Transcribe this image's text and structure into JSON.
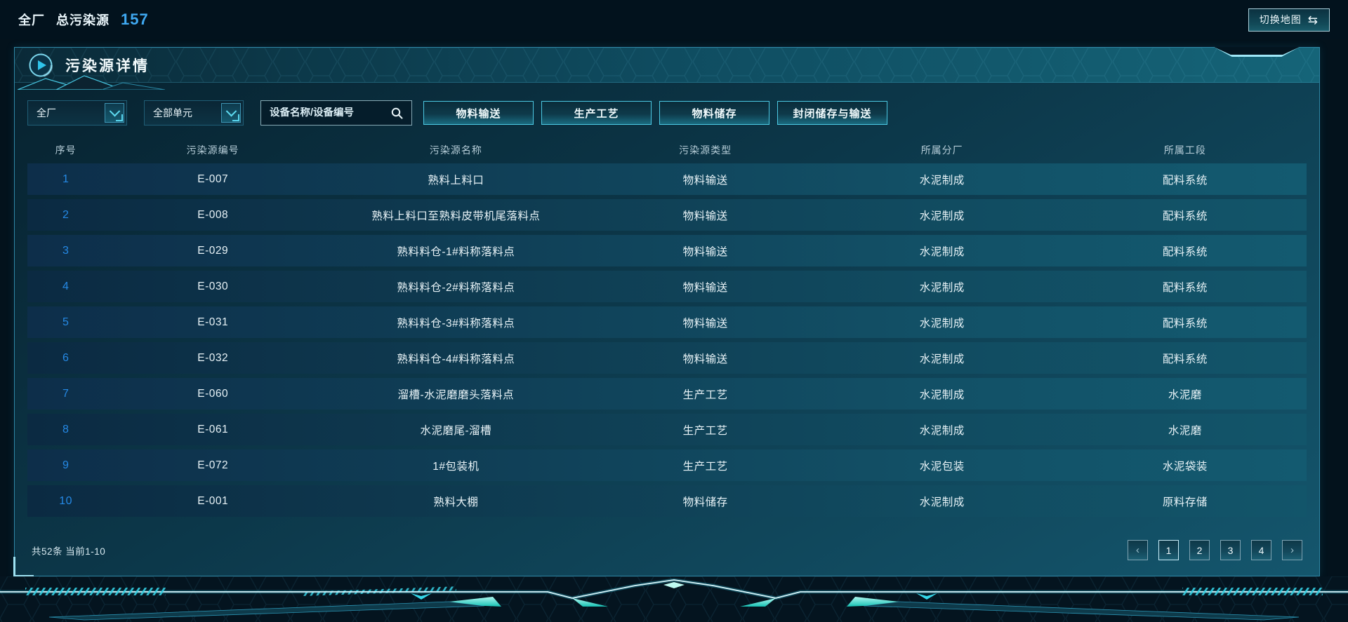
{
  "top_bar": {
    "scope_label": "全厂",
    "total_label": "总污染源",
    "total_value": "157",
    "switch_map_label": "切换地图",
    "switch_map_icon_glyph": "⇆"
  },
  "panel": {
    "title": "污染源详情",
    "filters": {
      "factory_select_value": "全厂",
      "unit_select_value": "全部单元",
      "search_placeholder": "设备名称/设备编号",
      "type_buttons": [
        "物料输送",
        "生产工艺",
        "物料储存",
        "封闭储存与输送"
      ]
    },
    "table": {
      "columns": [
        "序号",
        "污染源编号",
        "污染源名称",
        "污染源类型",
        "所属分厂",
        "所属工段"
      ],
      "rows": [
        [
          "1",
          "E-007",
          "熟料上料口",
          "物料输送",
          "水泥制成",
          "配料系统"
        ],
        [
          "2",
          "E-008",
          "熟料上料口至熟料皮带机尾落料点",
          "物料输送",
          "水泥制成",
          "配料系统"
        ],
        [
          "3",
          "E-029",
          "熟料料仓-1#料称落料点",
          "物料输送",
          "水泥制成",
          "配料系统"
        ],
        [
          "4",
          "E-030",
          "熟料料仓-2#料称落料点",
          "物料输送",
          "水泥制成",
          "配料系统"
        ],
        [
          "5",
          "E-031",
          "熟料料仓-3#料称落料点",
          "物料输送",
          "水泥制成",
          "配料系统"
        ],
        [
          "6",
          "E-032",
          "熟料料仓-4#料称落料点",
          "物料输送",
          "水泥制成",
          "配料系统"
        ],
        [
          "7",
          "E-060",
          "溜槽-水泥磨磨头落料点",
          "生产工艺",
          "水泥制成",
          "水泥磨"
        ],
        [
          "8",
          "E-061",
          "水泥磨尾-溜槽",
          "生产工艺",
          "水泥制成",
          "水泥磨"
        ],
        [
          "9",
          "E-072",
          "1#包装机",
          "生产工艺",
          "水泥包装",
          "水泥袋装"
        ],
        [
          "10",
          "E-001",
          "熟料大棚",
          "物料储存",
          "水泥制成",
          "原料存储"
        ]
      ]
    },
    "footer": {
      "summary": "共52条 当前1-10",
      "pages": [
        "1",
        "2",
        "3",
        "4"
      ],
      "current_page": "1",
      "prev_icon_glyph": "‹",
      "next_icon_glyph": "›"
    }
  },
  "colors": {
    "accent_cyan": "#3fd6ea",
    "index_blue": "#2589e5",
    "count_blue": "#3fa9f2",
    "panel_border": "#2f87a5",
    "glow_teal": "#38e6d6"
  }
}
